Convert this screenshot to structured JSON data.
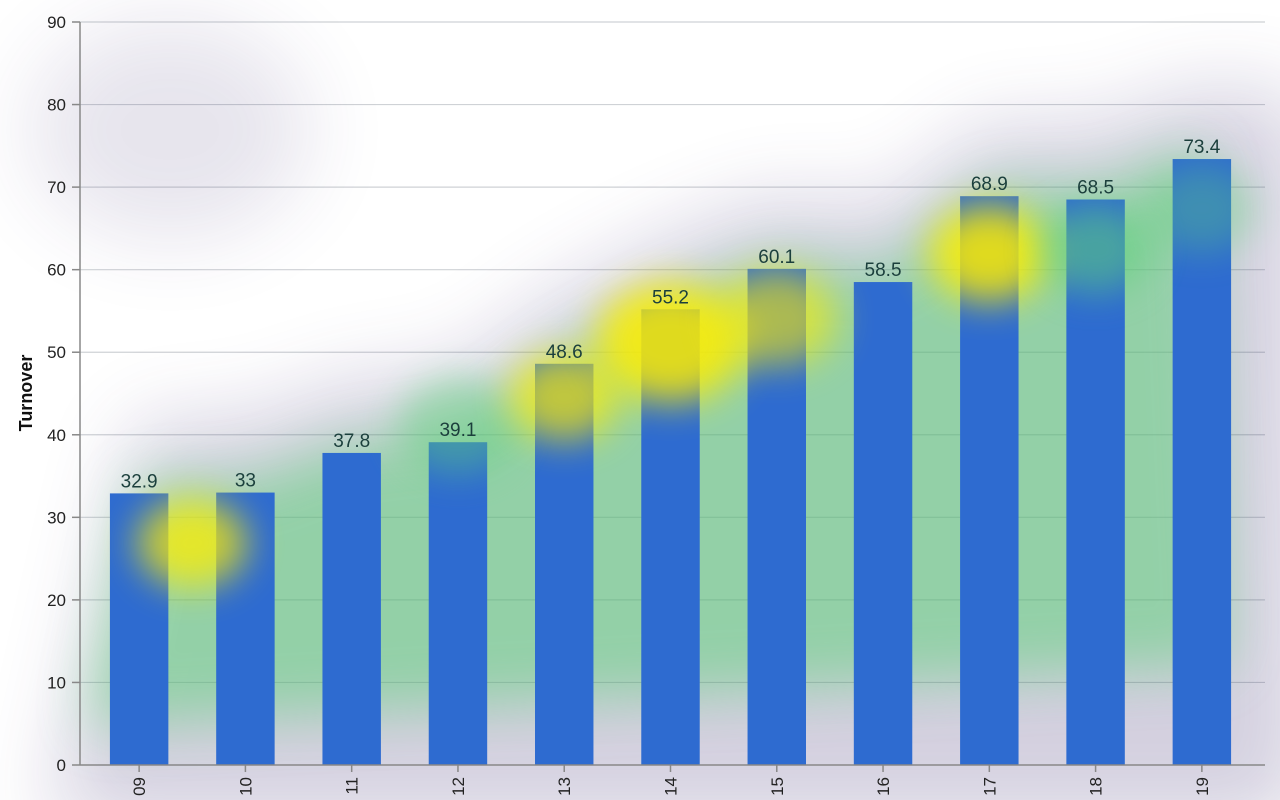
{
  "chart_data": {
    "type": "bar",
    "categories": [
      "09",
      "10",
      "11",
      "12",
      "13",
      "14",
      "15",
      "16",
      "17",
      "18",
      "19"
    ],
    "values": [
      32.9,
      33,
      37.8,
      39.1,
      48.6,
      55.2,
      60.1,
      58.5,
      68.9,
      68.5,
      73.4
    ],
    "data_labels": [
      "32.9",
      "33",
      "37.8",
      "39.1",
      "48.6",
      "55.2",
      "60.1",
      "58.5",
      "68.9",
      "68.5",
      "73.4"
    ],
    "title": "",
    "xlabel": "",
    "ylabel": "Turnover",
    "ylim": [
      0,
      90
    ],
    "yticks": [
      0,
      10,
      20,
      30,
      40,
      50,
      60,
      70,
      80,
      90
    ],
    "ytick_labels": [
      "0",
      "10",
      "20",
      "30",
      "40",
      "50",
      "60",
      "70",
      "80",
      "90"
    ],
    "grid": true,
    "legend": "none",
    "colors": {
      "bar": "#2e6bd0",
      "gridline": "#cfd2d6",
      "axis": "#888888",
      "heat_yellow": "#ffee00",
      "heat_green": "#5fd17a",
      "heat_haze": "#3a2a70"
    }
  }
}
